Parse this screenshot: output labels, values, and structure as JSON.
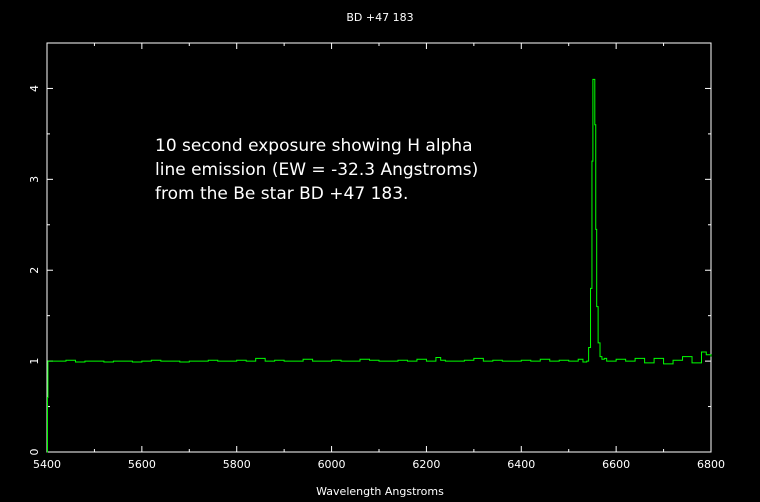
{
  "chart_data": {
    "type": "line",
    "title": "BD +47 183",
    "xlabel": "Wavelength  Angstroms",
    "ylabel": "",
    "xlim": [
      5400,
      6800
    ],
    "ylim": [
      0,
      4.5
    ],
    "x_ticks": [
      5400,
      5600,
      5800,
      6000,
      6200,
      6400,
      6600,
      6800
    ],
    "y_ticks": [
      0,
      1,
      2,
      3,
      4
    ],
    "grid": false,
    "line_color": "#00ff00",
    "background_color": "#000000",
    "axis_color": "#ffffff",
    "annotation": [
      "10 second exposure showing H alpha",
      "line emission (EW = -32.3 Angstroms)",
      "from the Be star BD +47 183."
    ],
    "series": [
      {
        "x": [
          5400,
          5401,
          5402,
          5405,
          5420,
          5440,
          5460,
          5480,
          5500,
          5520,
          5540,
          5560,
          5580,
          5600,
          5620,
          5640,
          5660,
          5680,
          5700,
          5720,
          5740,
          5760,
          5780,
          5800,
          5820,
          5840,
          5860,
          5880,
          5900,
          5920,
          5940,
          5960,
          5980,
          6000,
          6020,
          6040,
          6060,
          6080,
          6100,
          6120,
          6140,
          6160,
          6180,
          6200,
          6220,
          6230,
          6240,
          6260,
          6280,
          6300,
          6320,
          6340,
          6360,
          6380,
          6400,
          6420,
          6440,
          6460,
          6480,
          6500,
          6520,
          6530,
          6538,
          6542,
          6546,
          6549,
          6551,
          6553,
          6555,
          6557,
          6559,
          6562,
          6566,
          6570,
          6575,
          6580,
          6600,
          6620,
          6640,
          6660,
          6680,
          6700,
          6720,
          6740,
          6760,
          6780,
          6790,
          6800
        ],
        "y": [
          0.0,
          0.6,
          1.0,
          1.0,
          1.0,
          1.01,
          0.99,
          1.0,
          1.0,
          0.99,
          1.0,
          1.0,
          0.99,
          1.0,
          1.01,
          1.0,
          1.0,
          0.99,
          1.0,
          1.0,
          1.01,
          1.0,
          1.0,
          1.01,
          1.0,
          1.03,
          1.0,
          1.01,
          1.0,
          1.0,
          1.02,
          1.0,
          1.0,
          1.01,
          1.0,
          1.0,
          1.02,
          1.01,
          1.0,
          1.0,
          1.01,
          1.0,
          1.02,
          1.0,
          1.04,
          1.01,
          1.0,
          1.0,
          1.01,
          1.03,
          1.0,
          1.01,
          1.0,
          1.0,
          1.01,
          1.0,
          1.02,
          1.0,
          1.01,
          1.0,
          1.02,
          0.99,
          1.0,
          1.15,
          1.8,
          3.2,
          4.1,
          4.1,
          3.6,
          2.45,
          1.6,
          1.2,
          1.05,
          1.02,
          1.03,
          1.0,
          1.02,
          1.0,
          1.03,
          0.98,
          1.03,
          0.97,
          1.01,
          1.05,
          0.98,
          1.1,
          1.07,
          1.05
        ]
      }
    ]
  }
}
